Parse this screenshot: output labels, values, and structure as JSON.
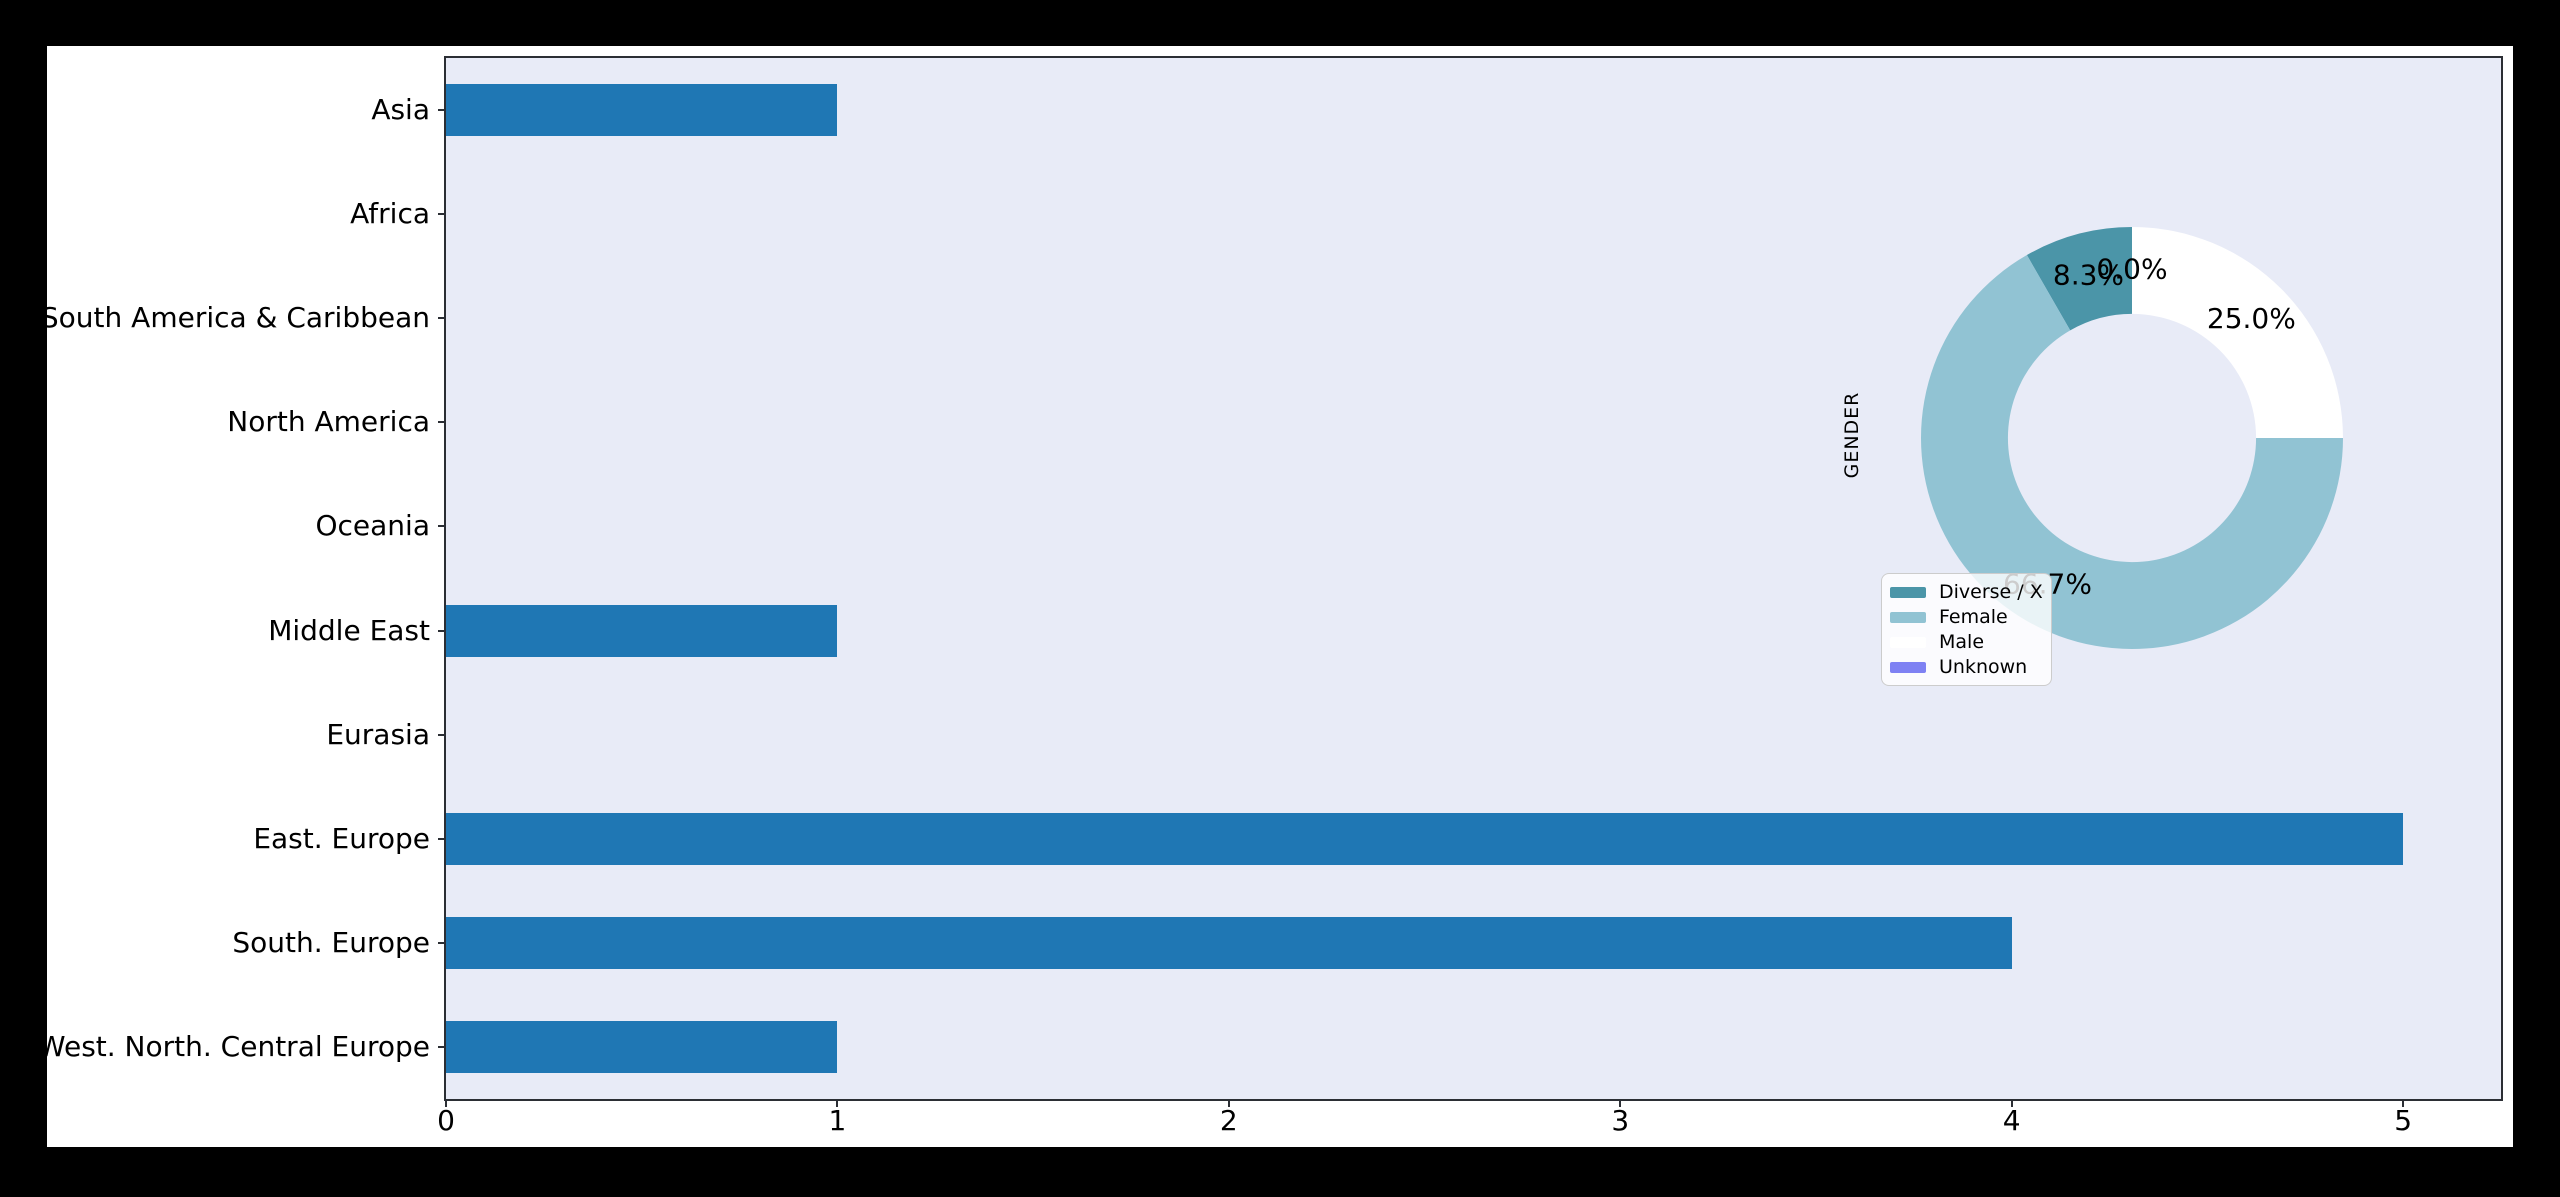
{
  "figure": {
    "outer_background": "#000000",
    "figure_background": "#ffffff",
    "plot_background": "#e8ebf7",
    "spine_color": "#2b2e34",
    "text_color": "#000000"
  },
  "chart_data": [
    {
      "type": "bar",
      "orientation": "horizontal",
      "title": "",
      "xlabel": "",
      "ylabel": "",
      "categories": [
        "Asia",
        "Africa",
        "South America & Caribbean",
        "North America",
        "Oceania",
        "Middle East",
        "Eurasia",
        "East. Europe",
        "South. Europe",
        "West. North. Central Europe"
      ],
      "values": [
        1,
        0,
        0,
        0,
        0,
        1,
        0,
        5,
        4,
        1
      ],
      "xlim": [
        0,
        5.25
      ],
      "xticks": [
        "0",
        "1",
        "2",
        "3",
        "4",
        "5"
      ],
      "grid": false,
      "bar_color": "#1f77b4",
      "plot_background": "#e8ebf7"
    },
    {
      "type": "pie",
      "subtype": "donut",
      "title": "",
      "ylabel": "GENDER",
      "labels": [
        "Diverse / X",
        "Female",
        "Male",
        "Unknown"
      ],
      "values_pct": [
        8.3,
        66.7,
        25.0,
        0.0
      ],
      "pct_labels": [
        "8.3%",
        "66.7%",
        "25.0%",
        "0.0%"
      ],
      "colors": [
        "#4b95a8",
        "#91c3d3",
        "#ffffff",
        "#7e81f3"
      ],
      "start_angle": 90,
      "counterclockwise": true,
      "pctdistance": 0.8,
      "donut_hole_ratio": 0.588,
      "legend": {
        "position": "lower-left-of-donut",
        "entries": [
          "Diverse / X",
          "Female",
          "Male",
          "Unknown"
        ],
        "background": "rgba(255,255,255,0.8)",
        "border_color": "#cccccc"
      }
    }
  ]
}
